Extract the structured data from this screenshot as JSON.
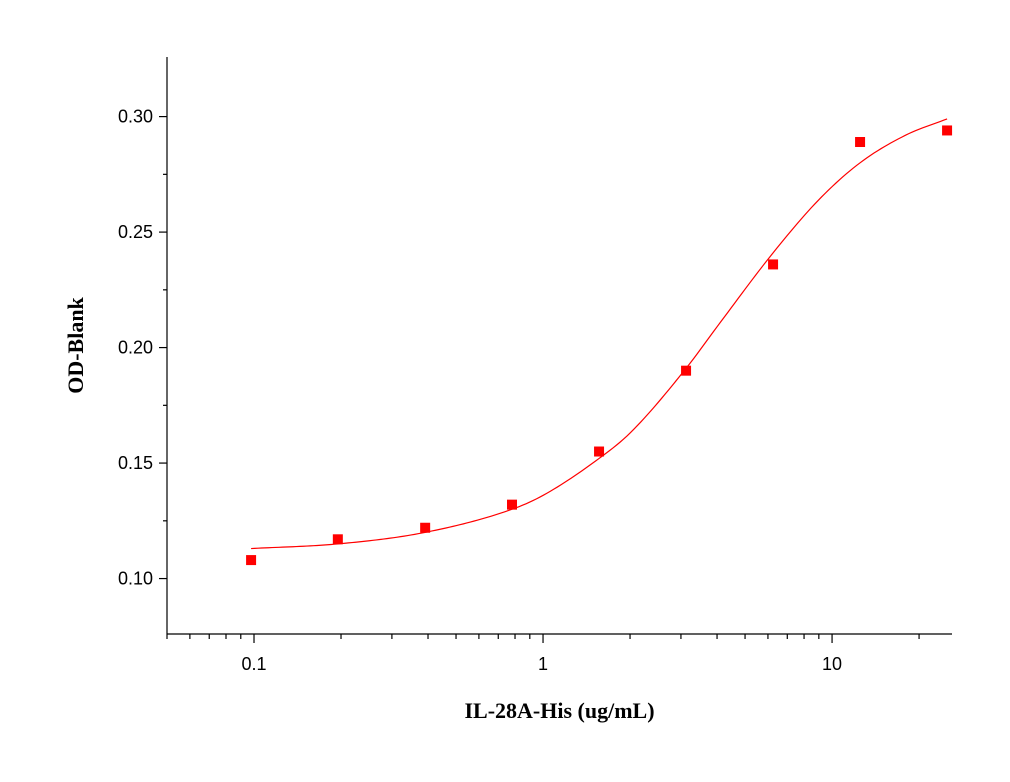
{
  "chart_data": {
    "type": "scatter",
    "title": "",
    "xlabel": "IL-28A-His (ug/mL)",
    "ylabel": "OD-Blank",
    "x_scale": "log",
    "xlim": [
      0.05,
      26
    ],
    "ylim": [
      0.076,
      0.3258
    ],
    "grid": false,
    "legend": "none",
    "x_ticks": [
      {
        "value": 0.1,
        "label": "0.1"
      },
      {
        "value": 1,
        "label": "1"
      },
      {
        "value": 10,
        "label": "10"
      }
    ],
    "y_ticks": [
      {
        "value": 0.1,
        "label": "0.10"
      },
      {
        "value": 0.15,
        "label": "0.15"
      },
      {
        "value": 0.2,
        "label": "0.20"
      },
      {
        "value": 0.25,
        "label": "0.25"
      },
      {
        "value": 0.3,
        "label": "0.30"
      }
    ],
    "series": [
      {
        "marker": "square",
        "color": "#ff0000",
        "points": [
          {
            "x": 0.0977,
            "y": 0.108
          },
          {
            "x": 0.195,
            "y": 0.117
          },
          {
            "x": 0.391,
            "y": 0.122
          },
          {
            "x": 0.781,
            "y": 0.132
          },
          {
            "x": 1.5625,
            "y": 0.155
          },
          {
            "x": 3.125,
            "y": 0.19
          },
          {
            "x": 6.25,
            "y": 0.236
          },
          {
            "x": 12.5,
            "y": 0.289
          },
          {
            "x": 25,
            "y": 0.294
          }
        ]
      }
    ],
    "fit_curve": {
      "color": "#ff0000",
      "x_range": [
        0.0977,
        25
      ],
      "points": [
        {
          "x": 0.0977,
          "y": 0.113
        },
        {
          "x": 0.195,
          "y": 0.115
        },
        {
          "x": 0.391,
          "y": 0.12
        },
        {
          "x": 0.781,
          "y": 0.13
        },
        {
          "x": 1.0,
          "y": 0.136
        },
        {
          "x": 1.5625,
          "y": 0.152
        },
        {
          "x": 2.0,
          "y": 0.163
        },
        {
          "x": 3.125,
          "y": 0.191
        },
        {
          "x": 4.0,
          "y": 0.209
        },
        {
          "x": 6.25,
          "y": 0.241
        },
        {
          "x": 9.0,
          "y": 0.264
        },
        {
          "x": 12.5,
          "y": 0.28
        },
        {
          "x": 18.0,
          "y": 0.292
        },
        {
          "x": 25,
          "y": 0.299
        }
      ]
    }
  }
}
